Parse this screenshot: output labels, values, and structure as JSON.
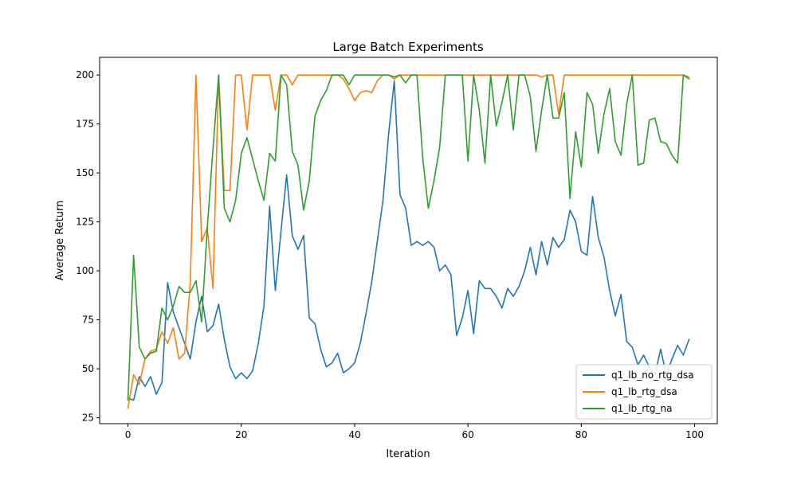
{
  "chart_data": {
    "type": "line",
    "title": "Large Batch Experiments",
    "xlabel": "Iteration",
    "ylabel": "Average Return",
    "xlim": [
      -5,
      104
    ],
    "ylim": [
      22,
      209
    ],
    "xticks": [
      0,
      20,
      40,
      60,
      80,
      100
    ],
    "yticks": [
      25,
      50,
      75,
      100,
      125,
      150,
      175,
      200
    ],
    "grid": false,
    "legend_position": "lower-right",
    "series": [
      {
        "name": "q1_lb_no_rtg_dsa",
        "color": "#1f77b4",
        "values": [
          35,
          34,
          46,
          41,
          46,
          37,
          43,
          94,
          79,
          71,
          63,
          55,
          74,
          87,
          69,
          72,
          83,
          65,
          51,
          45,
          48,
          45,
          49,
          63,
          82,
          133,
          90,
          120,
          149,
          118,
          111,
          118,
          76,
          73,
          60,
          51,
          53,
          58,
          48,
          50,
          53,
          63,
          78,
          94,
          115,
          136,
          170,
          197,
          139,
          132,
          113,
          115,
          113,
          115,
          112,
          100,
          103,
          98,
          67,
          76,
          90,
          68,
          95,
          91,
          91,
          87,
          81,
          91,
          87,
          92,
          100,
          112,
          98,
          115,
          103,
          117,
          112,
          116,
          131,
          125,
          110,
          108,
          138,
          117,
          107,
          90,
          77,
          88,
          64,
          61,
          52,
          57,
          51,
          47,
          60,
          47,
          55,
          62,
          57,
          65
        ]
      },
      {
        "name": "q1_lb_rtg_dsa",
        "color": "#ff7f0e",
        "values": [
          30,
          47,
          42,
          55,
          59,
          60,
          69,
          63,
          71,
          55,
          58,
          94,
          200,
          115,
          122,
          91,
          200,
          141,
          141,
          200,
          200,
          172,
          200,
          200,
          200,
          200,
          182,
          200,
          200,
          195,
          200,
          200,
          200,
          200,
          200,
          200,
          200,
          200,
          198,
          193,
          187,
          191,
          192,
          191,
          197,
          200,
          200,
          198,
          200,
          200,
          200,
          200,
          200,
          200,
          200,
          200,
          200,
          200,
          200,
          200,
          200,
          200,
          200,
          200,
          200,
          200,
          200,
          200,
          200,
          200,
          200,
          200,
          200,
          199,
          200,
          200,
          180,
          200,
          200,
          200,
          200,
          200,
          200,
          200,
          200,
          200,
          200,
          200,
          200,
          200,
          200,
          200,
          200,
          200,
          200,
          200,
          200,
          200,
          200,
          199
        ]
      },
      {
        "name": "q1_lb_rtg_na",
        "color": "#2ca02c",
        "values": [
          34,
          108,
          61,
          55,
          58,
          59,
          81,
          75,
          82,
          92,
          89,
          89,
          95,
          74,
          122,
          162,
          200,
          132,
          125,
          136,
          160,
          168,
          157,
          146,
          136,
          160,
          156,
          200,
          195,
          161,
          154,
          131,
          146,
          179,
          187,
          192,
          200,
          200,
          200,
          195,
          200,
          200,
          200,
          200,
          200,
          200,
          200,
          199,
          200,
          196,
          200,
          200,
          158,
          132,
          146,
          163,
          200,
          200,
          200,
          200,
          156,
          200,
          182,
          155,
          200,
          174,
          186,
          200,
          172,
          200,
          200,
          189,
          161,
          182,
          200,
          178,
          178,
          191,
          137,
          171,
          153,
          191,
          185,
          160,
          180,
          193,
          166,
          159,
          185,
          200,
          154,
          155,
          177,
          178,
          166,
          165,
          159,
          155,
          200,
          198
        ]
      }
    ]
  }
}
